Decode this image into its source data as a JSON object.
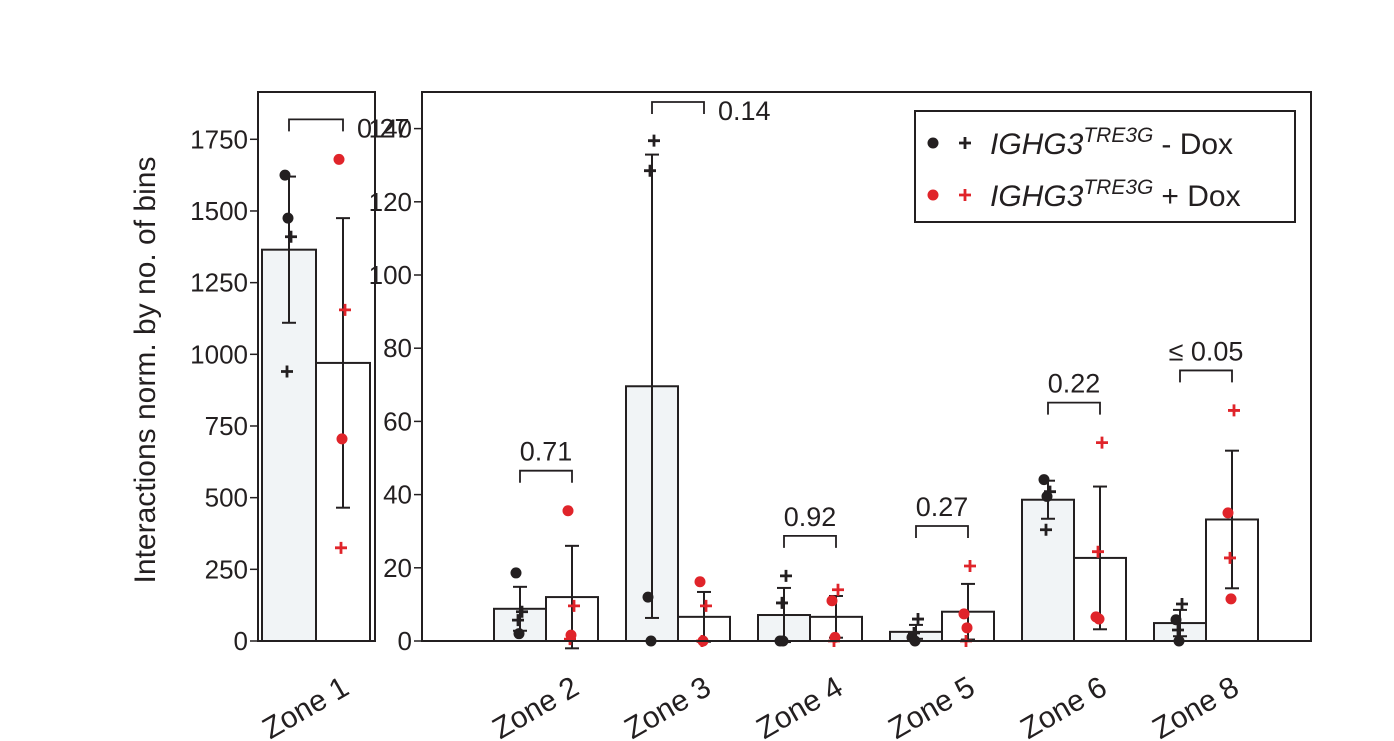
{
  "chart_data": [
    {
      "type": "bar",
      "ylabel": "Interactions norm. by no. of bins",
      "categories": [
        "Zone 1"
      ],
      "ylim": [
        0,
        1915
      ],
      "yticks": [
        0,
        250,
        500,
        750,
        1000,
        1250,
        1500,
        1750
      ],
      "series": [
        {
          "color": "#231f20",
          "bar_color": "#f1f4f6",
          "values": [
            1365
          ],
          "errors": [
            255
          ],
          "dots": [
            [
              1625,
              1475
            ]
          ],
          "crosses": [
            [
              1410,
              940
            ]
          ]
        },
        {
          "color": "#e0242a",
          "bar_color": "#ffffff",
          "values": [
            970
          ],
          "errors": [
            505
          ],
          "dots": [
            [
              1680,
              705
            ]
          ],
          "crosses": [
            [
              1155,
              325
            ]
          ]
        }
      ],
      "p_values": [
        "0.27"
      ]
    },
    {
      "type": "bar",
      "categories": [
        "Zone 2",
        "Zone 3",
        "Zone 4",
        "Zone 5",
        "Zone 6",
        "Zone 8"
      ],
      "ylim": [
        0,
        150
      ],
      "yticks": [
        0,
        20,
        40,
        60,
        80,
        100,
        120,
        140
      ],
      "legend_position": "upper right",
      "series": [
        {
          "name": "IGHG3",
          "name_superscript": "TRE3G",
          "name_suffix": "- Dox",
          "color": "#231f20",
          "bar_color": "#f1f4f6",
          "values": [
            8.8,
            69.6,
            7.1,
            2.5,
            38.6,
            4.9
          ],
          "errors": [
            6,
            63.3,
            7.4,
            1.9,
            5.2,
            3.6
          ],
          "dots": [
            [
              18.6,
              2
            ],
            [
              12,
              0
            ],
            [
              0,
              0
            ],
            [
              1,
              0
            ],
            [
              44.1,
              39.5
            ],
            [
              5.8,
              0
            ]
          ],
          "crosses": [
            [
              8,
              5.7
            ],
            [
              136.7,
              128.5
            ],
            [
              17.8,
              10.4
            ],
            [
              6,
              2.2
            ],
            [
              40.8,
              30.4
            ],
            [
              10.1,
              3
            ]
          ]
        },
        {
          "name": "IGHG3",
          "name_superscript": "TRE3G",
          "name_suffix": "+ Dox",
          "color": "#e0242a",
          "bar_color": "#ffffff",
          "values": [
            12,
            6.6,
            6.6,
            8,
            22.7,
            33.2
          ],
          "errors": [
            14,
            6.8,
            5.7,
            7.6,
            19.5,
            18.8
          ],
          "dots": [
            [
              35.6,
              1.6
            ],
            [
              16.2,
              0
            ],
            [
              11,
              1
            ],
            [
              7.4,
              3.6
            ],
            [
              6.6,
              6
            ],
            [
              35,
              11.5
            ]
          ],
          "crosses": [
            [
              9.6,
              0.5
            ],
            [
              9.6,
              0
            ],
            [
              14,
              0
            ],
            [
              20.5,
              0
            ],
            [
              54.2,
              24.4
            ],
            [
              63,
              22.7
            ]
          ]
        }
      ],
      "p_values": [
        "0.71",
        "0.14",
        "0.92",
        "0.27",
        "0.22",
        "≤ 0.05"
      ]
    }
  ]
}
